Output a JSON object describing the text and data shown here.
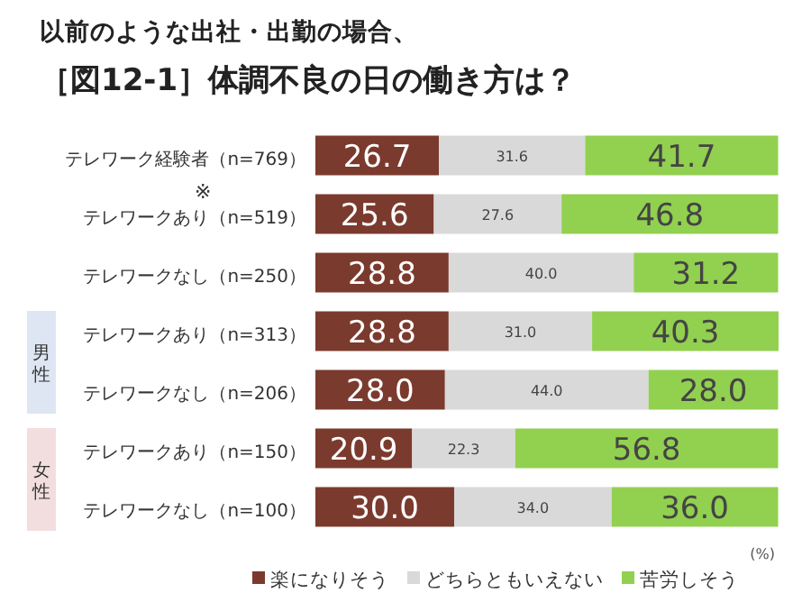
{
  "chart_data": {
    "type": "bar",
    "orientation": "horizontal",
    "stacked": true,
    "data_labels": true,
    "legend": "bottom",
    "title": "以前のような出社・出勤の場合、",
    "subtitle": "［図12-1］体調不良の日の働き方は？",
    "categories": [
      "テレワーク経験者（n=769）",
      "テレワークあり（n=519）",
      "テレワークなし（n=250）",
      "テレワークあり（n=313）",
      "テレワークなし（n=206）",
      "テレワークあり（n=150）",
      "テレワークなし（n=100）"
    ],
    "series": [
      {
        "name": "楽になりそう",
        "color": "#7b3a2e",
        "values": [
          26.7,
          25.6,
          28.8,
          28.8,
          28.0,
          20.9,
          30.0
        ],
        "value_labels": [
          "26.7",
          "25.6",
          "28.8",
          "28.8",
          "28.0",
          "20.9",
          "30.0"
        ]
      },
      {
        "name": "どちらともいえない",
        "color": "#d9d9d9",
        "values": [
          31.6,
          27.6,
          40.0,
          31.0,
          44.0,
          22.3,
          34.0
        ],
        "value_labels": [
          "31.6",
          "27.6",
          "40.0",
          "31.0",
          "44.0",
          "22.3",
          "34.0"
        ]
      },
      {
        "name": "苦労しそう",
        "color": "#92d050",
        "values": [
          41.7,
          46.8,
          31.2,
          40.3,
          28.0,
          56.8,
          36.0
        ],
        "value_labels": [
          "41.7",
          "46.8",
          "31.2",
          "40.3",
          "28.0",
          "56.8",
          "36.0"
        ]
      }
    ],
    "annotations": [
      "※",
      "男性",
      "女性",
      "(%)"
    ]
  }
}
